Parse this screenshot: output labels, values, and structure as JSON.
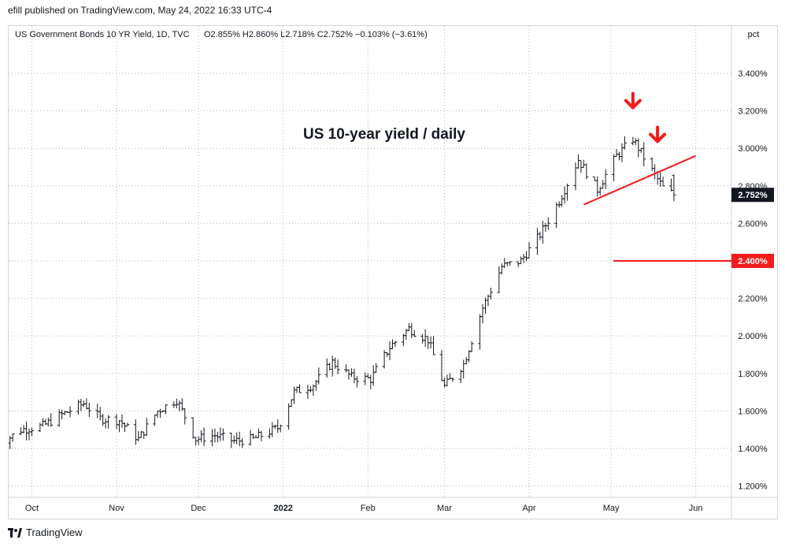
{
  "header": {
    "published_by": "efill published on TradingView.com, May 24, 2022 16:33 UTC-4"
  },
  "legend": {
    "symbol": "US Government Bonds 10 YR Yield, 1D, TVC",
    "ohlc": "O2.855%  H2.860%  L2.718%  C2.752%  −0.103% (−3.61%)"
  },
  "price_scale": {
    "unit": "pct",
    "ticks": [
      "3.400%",
      "3.200%",
      "3.000%",
      "2.800%",
      "2.600%",
      "2.400%",
      "2.200%",
      "2.000%",
      "1.800%",
      "1.600%",
      "1.400%",
      "1.200%"
    ],
    "current_label": "2.752%",
    "level_label": "2.400%"
  },
  "annotation": {
    "title": "US 10-year yield / daily"
  },
  "footer": {
    "logo_text": "TradingView"
  },
  "colors": {
    "bars": "#131722",
    "annotation_red": "#f21b1b",
    "grid": "#b2b5be",
    "level_line": "#f21b1b"
  },
  "chart_data": {
    "type": "ohlc-bar",
    "title": "US 10-year yield / daily",
    "x_axis": [
      "Oct",
      "Nov",
      "Dec",
      "2022",
      "Feb",
      "Mar",
      "Apr",
      "May",
      "Jun"
    ],
    "y_unit": "pct",
    "ylim": [
      1.12,
      3.56
    ],
    "grid": "dotted",
    "last_close": 2.752,
    "horizontal_level": 2.4,
    "trendline": {
      "from": {
        "date": "2022-04-21",
        "value": 2.7
      },
      "to": {
        "date": "2022-06-01",
        "value": 2.96
      }
    },
    "markers": [
      {
        "type": "down-arrow",
        "date": "2022-05-09",
        "value": 3.2
      },
      {
        "type": "down-arrow",
        "date": "2022-05-18",
        "value": 3.02
      }
    ],
    "close_path": [
      [
        "2021-09-20",
        1.43
      ],
      [
        "2021-09-27",
        1.5
      ],
      [
        "2021-10-05",
        1.52
      ],
      [
        "2021-10-12",
        1.58
      ],
      [
        "2021-10-20",
        1.64
      ],
      [
        "2021-10-26",
        1.56
      ],
      [
        "2021-11-02",
        1.55
      ],
      [
        "2021-11-09",
        1.45
      ],
      [
        "2021-11-16",
        1.6
      ],
      [
        "2021-11-23",
        1.66
      ],
      [
        "2021-11-30",
        1.45
      ],
      [
        "2021-12-07",
        1.47
      ],
      [
        "2021-12-14",
        1.44
      ],
      [
        "2021-12-21",
        1.45
      ],
      [
        "2021-12-30",
        1.51
      ],
      [
        "2022-01-05",
        1.7
      ],
      [
        "2022-01-12",
        1.74
      ],
      [
        "2022-01-19",
        1.86
      ],
      [
        "2022-01-26",
        1.78
      ],
      [
        "2022-02-02",
        1.77
      ],
      [
        "2022-02-09",
        1.94
      ],
      [
        "2022-02-16",
        2.04
      ],
      [
        "2022-02-23",
        1.98
      ],
      [
        "2022-03-01",
        1.73
      ],
      [
        "2022-03-08",
        1.85
      ],
      [
        "2022-03-15",
        2.15
      ],
      [
        "2022-03-22",
        2.37
      ],
      [
        "2022-03-29",
        2.4
      ],
      [
        "2022-04-05",
        2.54
      ],
      [
        "2022-04-12",
        2.72
      ],
      [
        "2022-04-19",
        2.94
      ],
      [
        "2022-04-26",
        2.78
      ],
      [
        "2022-05-03",
        2.96
      ],
      [
        "2022-05-09",
        3.05
      ],
      [
        "2022-05-16",
        2.88
      ],
      [
        "2022-05-20",
        2.79
      ],
      [
        "2022-05-24",
        2.752
      ]
    ]
  }
}
